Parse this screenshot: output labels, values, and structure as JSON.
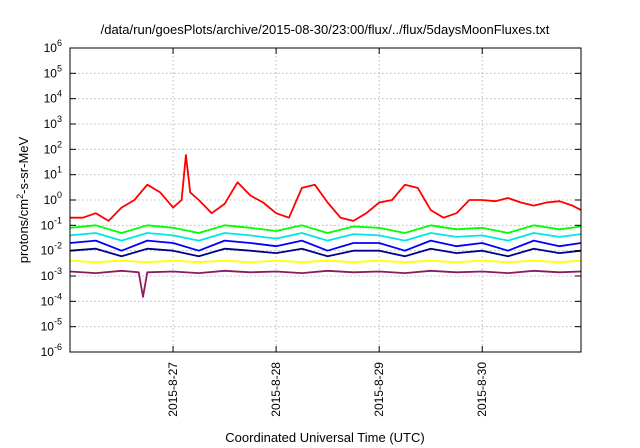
{
  "chart_data": {
    "type": "line",
    "title": "/data/run/goesPlots/archive/2015-08-30/23:00/flux/../flux/5daysMoonFluxes.txt",
    "xlabel": "Coordinated Universal Time (UTC)",
    "ylabel_parts": {
      "pre": "protons/cm",
      "sup": "2",
      "post": "-s-sr-MeV"
    },
    "y_scale": "log",
    "ylim": [
      "1e-6",
      "1e6"
    ],
    "y_ticks": [
      {
        "value": -6,
        "base": "10",
        "exp": "-6"
      },
      {
        "value": -5,
        "base": "10",
        "exp": "-5"
      },
      {
        "value": -4,
        "base": "10",
        "exp": "-4"
      },
      {
        "value": -3,
        "base": "10",
        "exp": "-3"
      },
      {
        "value": -2,
        "base": "10",
        "exp": "-2"
      },
      {
        "value": -1,
        "base": "10",
        "exp": "-1"
      },
      {
        "value": 0,
        "base": "10",
        "exp": "0"
      },
      {
        "value": 1,
        "base": "10",
        "exp": "1"
      },
      {
        "value": 2,
        "base": "10",
        "exp": "2"
      },
      {
        "value": 3,
        "base": "10",
        "exp": "3"
      },
      {
        "value": 4,
        "base": "10",
        "exp": "4"
      },
      {
        "value": 5,
        "base": "10",
        "exp": "5"
      },
      {
        "value": 6,
        "base": "10",
        "exp": "6"
      }
    ],
    "xlim": [
      "2015-08-26 00:00",
      "2015-08-30 23:00"
    ],
    "x_ticks": [
      {
        "date": "2015-08-27",
        "label": "2015-8-27"
      },
      {
        "date": "2015-08-28",
        "label": "2015-8-28"
      },
      {
        "date": "2015-08-29",
        "label": "2015-8-29"
      },
      {
        "date": "2015-08-30",
        "label": "2015-8-30"
      }
    ],
    "grid": true,
    "series": [
      {
        "color": "#ff0000",
        "x": [
          "2015-08-26 00:00",
          "2015-08-26 03:00",
          "2015-08-26 06:00",
          "2015-08-26 09:00",
          "2015-08-26 12:00",
          "2015-08-26 15:00",
          "2015-08-26 18:00",
          "2015-08-26 21:00",
          "2015-08-27 00:00",
          "2015-08-27 02:00",
          "2015-08-27 03:00",
          "2015-08-27 04:00",
          "2015-08-27 06:00",
          "2015-08-27 09:00",
          "2015-08-27 12:00",
          "2015-08-27 15:00",
          "2015-08-27 18:00",
          "2015-08-27 21:00",
          "2015-08-28 00:00",
          "2015-08-28 03:00",
          "2015-08-28 06:00",
          "2015-08-28 09:00",
          "2015-08-28 12:00",
          "2015-08-28 15:00",
          "2015-08-28 18:00",
          "2015-08-28 21:00",
          "2015-08-29 00:00",
          "2015-08-29 03:00",
          "2015-08-29 06:00",
          "2015-08-29 09:00",
          "2015-08-29 12:00",
          "2015-08-29 15:00",
          "2015-08-29 18:00",
          "2015-08-29 21:00",
          "2015-08-30 00:00",
          "2015-08-30 03:00",
          "2015-08-30 06:00",
          "2015-08-30 09:00",
          "2015-08-30 12:00",
          "2015-08-30 15:00",
          "2015-08-30 18:00",
          "2015-08-30 21:00",
          "2015-08-30 23:00"
        ],
        "y": [
          0.2,
          0.2,
          0.3,
          0.15,
          0.5,
          1.0,
          4.0,
          2.0,
          0.5,
          1.0,
          60,
          2.0,
          1.0,
          0.3,
          0.7,
          5.0,
          1.5,
          0.8,
          0.3,
          0.2,
          3.0,
          4.0,
          0.8,
          0.2,
          0.15,
          0.3,
          0.8,
          1.0,
          4.0,
          3.0,
          0.4,
          0.2,
          0.3,
          1.0,
          1.0,
          0.9,
          1.2,
          0.8,
          0.6,
          0.8,
          0.9,
          0.6,
          0.4
        ]
      },
      {
        "color": "#00ff00",
        "x": [
          "2015-08-26 00:00",
          "2015-08-26 06:00",
          "2015-08-26 12:00",
          "2015-08-26 18:00",
          "2015-08-27 00:00",
          "2015-08-27 06:00",
          "2015-08-27 12:00",
          "2015-08-27 18:00",
          "2015-08-28 00:00",
          "2015-08-28 06:00",
          "2015-08-28 12:00",
          "2015-08-28 18:00",
          "2015-08-29 00:00",
          "2015-08-29 06:00",
          "2015-08-29 12:00",
          "2015-08-29 18:00",
          "2015-08-30 00:00",
          "2015-08-30 06:00",
          "2015-08-30 12:00",
          "2015-08-30 18:00",
          "2015-08-30 23:00"
        ],
        "y": [
          0.08,
          0.1,
          0.05,
          0.1,
          0.08,
          0.05,
          0.1,
          0.08,
          0.06,
          0.1,
          0.05,
          0.09,
          0.08,
          0.05,
          0.1,
          0.07,
          0.08,
          0.05,
          0.1,
          0.07,
          0.09
        ]
      },
      {
        "color": "#00e5e5",
        "x": [
          "2015-08-26 00:00",
          "2015-08-26 06:00",
          "2015-08-26 12:00",
          "2015-08-26 18:00",
          "2015-08-27 00:00",
          "2015-08-27 06:00",
          "2015-08-27 12:00",
          "2015-08-27 18:00",
          "2015-08-28 00:00",
          "2015-08-28 06:00",
          "2015-08-28 12:00",
          "2015-08-28 18:00",
          "2015-08-29 00:00",
          "2015-08-29 06:00",
          "2015-08-29 12:00",
          "2015-08-29 18:00",
          "2015-08-30 00:00",
          "2015-08-30 06:00",
          "2015-08-30 12:00",
          "2015-08-30 18:00",
          "2015-08-30 23:00"
        ],
        "y": [
          0.04,
          0.05,
          0.025,
          0.05,
          0.04,
          0.025,
          0.05,
          0.04,
          0.03,
          0.05,
          0.025,
          0.045,
          0.04,
          0.025,
          0.05,
          0.035,
          0.04,
          0.025,
          0.05,
          0.035,
          0.045
        ]
      },
      {
        "color": "#0000ff",
        "x": [
          "2015-08-26 00:00",
          "2015-08-26 06:00",
          "2015-08-26 12:00",
          "2015-08-26 18:00",
          "2015-08-27 00:00",
          "2015-08-27 06:00",
          "2015-08-27 12:00",
          "2015-08-27 18:00",
          "2015-08-28 00:00",
          "2015-08-28 06:00",
          "2015-08-28 12:00",
          "2015-08-28 18:00",
          "2015-08-29 00:00",
          "2015-08-29 06:00",
          "2015-08-29 12:00",
          "2015-08-29 18:00",
          "2015-08-30 00:00",
          "2015-08-30 06:00",
          "2015-08-30 12:00",
          "2015-08-30 18:00",
          "2015-08-30 23:00"
        ],
        "y": [
          0.02,
          0.025,
          0.01,
          0.025,
          0.02,
          0.01,
          0.025,
          0.02,
          0.015,
          0.025,
          0.01,
          0.02,
          0.02,
          0.01,
          0.025,
          0.015,
          0.02,
          0.01,
          0.025,
          0.015,
          0.02
        ]
      },
      {
        "color": "#00008b",
        "x": [
          "2015-08-26 00:00",
          "2015-08-26 06:00",
          "2015-08-26 12:00",
          "2015-08-26 18:00",
          "2015-08-27 00:00",
          "2015-08-27 06:00",
          "2015-08-27 12:00",
          "2015-08-27 18:00",
          "2015-08-28 00:00",
          "2015-08-28 06:00",
          "2015-08-28 12:00",
          "2015-08-28 18:00",
          "2015-08-29 00:00",
          "2015-08-29 06:00",
          "2015-08-29 12:00",
          "2015-08-29 18:00",
          "2015-08-30 00:00",
          "2015-08-30 06:00",
          "2015-08-30 12:00",
          "2015-08-30 18:00",
          "2015-08-30 23:00"
        ],
        "y": [
          0.01,
          0.012,
          0.006,
          0.012,
          0.01,
          0.006,
          0.012,
          0.01,
          0.008,
          0.012,
          0.006,
          0.01,
          0.01,
          0.006,
          0.012,
          0.008,
          0.01,
          0.006,
          0.012,
          0.008,
          0.01
        ]
      },
      {
        "color": "#ffff00",
        "x": [
          "2015-08-26 00:00",
          "2015-08-26 06:00",
          "2015-08-26 12:00",
          "2015-08-26 18:00",
          "2015-08-27 00:00",
          "2015-08-27 06:00",
          "2015-08-27 12:00",
          "2015-08-27 18:00",
          "2015-08-28 00:00",
          "2015-08-28 06:00",
          "2015-08-28 12:00",
          "2015-08-28 18:00",
          "2015-08-29 00:00",
          "2015-08-29 06:00",
          "2015-08-29 12:00",
          "2015-08-29 18:00",
          "2015-08-30 00:00",
          "2015-08-30 06:00",
          "2015-08-30 12:00",
          "2015-08-30 18:00",
          "2015-08-30 23:00"
        ],
        "y": [
          0.004,
          0.0035,
          0.004,
          0.0035,
          0.004,
          0.0035,
          0.004,
          0.0035,
          0.004,
          0.0035,
          0.004,
          0.0035,
          0.004,
          0.0035,
          0.004,
          0.0035,
          0.004,
          0.0035,
          0.004,
          0.0035,
          0.004
        ]
      },
      {
        "color": "#8b1a5e",
        "x": [
          "2015-08-26 00:00",
          "2015-08-26 06:00",
          "2015-08-26 12:00",
          "2015-08-26 16:00",
          "2015-08-26 17:00",
          "2015-08-26 18:00",
          "2015-08-27 00:00",
          "2015-08-27 06:00",
          "2015-08-27 12:00",
          "2015-08-27 18:00",
          "2015-08-28 00:00",
          "2015-08-28 06:00",
          "2015-08-28 12:00",
          "2015-08-28 18:00",
          "2015-08-29 00:00",
          "2015-08-29 06:00",
          "2015-08-29 12:00",
          "2015-08-29 18:00",
          "2015-08-30 00:00",
          "2015-08-30 06:00",
          "2015-08-30 12:00",
          "2015-08-30 18:00",
          "2015-08-30 23:00"
        ],
        "y": [
          0.0015,
          0.0013,
          0.0016,
          0.0014,
          0.00015,
          0.0014,
          0.0015,
          0.0013,
          0.0016,
          0.0014,
          0.0015,
          0.0013,
          0.0016,
          0.0014,
          0.0015,
          0.0013,
          0.0016,
          0.0014,
          0.0015,
          0.0013,
          0.0016,
          0.0014,
          0.0015
        ]
      }
    ]
  }
}
